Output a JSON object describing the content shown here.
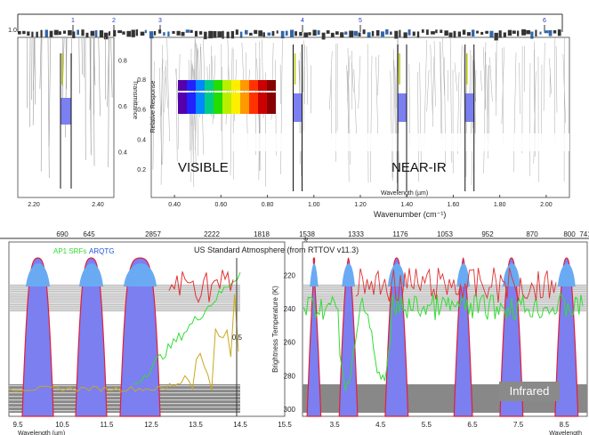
{
  "chart_data": [
    {
      "type": "line",
      "panel": "channel-numbers-strip",
      "markers": [
        "1",
        "2",
        "3",
        "4",
        "5",
        "6"
      ],
      "ytick": "1.0"
    },
    {
      "type": "area",
      "panel": "top-left",
      "ylabel": "Transmittance",
      "ylim": [
        0.2,
        0.8
      ],
      "yticks": [
        "0.8",
        "0.6",
        "0.4"
      ],
      "xticks": [
        "2.20",
        "2.40"
      ],
      "xlim": [
        2.15,
        2.45
      ],
      "band_center": 2.3
    },
    {
      "type": "area",
      "panel": "top-right",
      "xlabel": "Wavelength (µm)",
      "ylabel": "Relative Response",
      "ylim": [
        0.2,
        0.9
      ],
      "yticks": [
        "0.8",
        "0.6",
        "0.4",
        "0.2"
      ],
      "xticks": [
        "0.40",
        "0.60",
        "0.80",
        "1.00",
        "1.20",
        "1.40",
        "1.60",
        "1.80",
        "2.00"
      ],
      "xlim": [
        0.3,
        2.1
      ],
      "bands": [
        {
          "center": 0.93,
          "width": 0.02
        },
        {
          "center": 1.38,
          "width": 0.03
        },
        {
          "center": 1.67,
          "width": 0.04
        }
      ],
      "annotations": [
        "VISIBLE",
        "NEAR-IR"
      ]
    },
    {
      "type": "area",
      "panel": "bottom-left",
      "xlabel": "Wavelength (µm)",
      "xlim": [
        9.3,
        15.5
      ],
      "xticks": [
        "9.5",
        "10.5",
        "11.5",
        "12.5",
        "13.5",
        "14.5",
        "15.5"
      ],
      "top_ticks": [
        "690",
        "645"
      ],
      "ylabel": "Relative Response",
      "ytick": "0.5",
      "bands": [
        {
          "lo": 9.6,
          "hi": 10.3
        },
        {
          "lo": 10.8,
          "hi": 11.5
        },
        {
          "lo": 11.8,
          "hi": 12.7
        }
      ],
      "legend": [
        "AP1 SRFs",
        "ARQTG"
      ]
    },
    {
      "type": "area",
      "panel": "bottom-right",
      "title": "US Standard Atmosphere (from RTTOV v11.3)",
      "xlabel": "Wavelength",
      "xlim": [
        2.8,
        9.0
      ],
      "xticks": [
        "3.5",
        "4.5",
        "5.5",
        "6.5",
        "7.5",
        "8.5"
      ],
      "top_ticks": [
        "2857",
        "2222",
        "1818",
        "1538",
        "1333",
        "1176",
        "1053",
        "952",
        "870",
        "800",
        "741"
      ],
      "top_axis_label": "Wavenumber (cm⁻¹)",
      "ylabel": "Brightness Temperature (K)",
      "ylim": [
        300,
        215
      ],
      "yticks": [
        "220",
        "240",
        "260",
        "280",
        "300"
      ],
      "bands": [
        {
          "lo": 2.9,
          "hi": 3.2
        },
        {
          "lo": 3.6,
          "hi": 4.0
        },
        {
          "lo": 4.6,
          "hi": 5.1
        },
        {
          "lo": 6.1,
          "hi": 6.5
        },
        {
          "lo": 7.1,
          "hi": 7.6
        },
        {
          "lo": 8.3,
          "hi": 8.8
        }
      ],
      "annotation": "Infrared"
    }
  ],
  "colors": {
    "band_fill": "#7b7ff0",
    "band_edge": "#e0203a",
    "band_top": "#6aaaf2",
    "green_line": "#33dd33",
    "red_line": "#e03030",
    "gold_line": "#c9a820",
    "gray_bar": "#b8b8b8"
  }
}
